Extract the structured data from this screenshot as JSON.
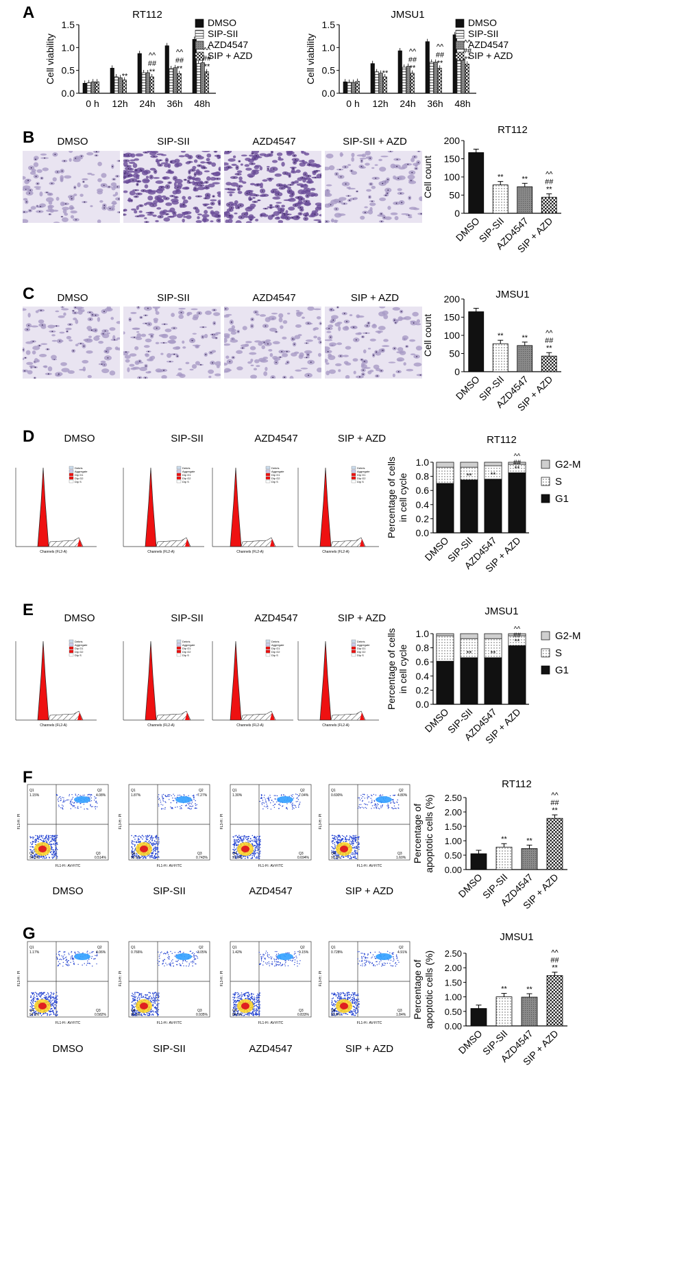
{
  "panels": {
    "A": {
      "letter": "A"
    },
    "B": {
      "letter": "B",
      "images": [
        "DMSO",
        "SIP-SII",
        "AZD4547",
        "SIP-SII + AZD"
      ]
    },
    "C": {
      "letter": "C",
      "images": [
        "DMSO",
        "SIP-SII",
        "AZD4547",
        "SIP + AZD"
      ]
    },
    "D": {
      "letter": "D",
      "images": [
        "DMSO",
        "SIP-SII",
        "AZD4547",
        "SIP + AZD"
      ],
      "hist_axis": "Channels (FL2-A)",
      "hist_legend": [
        "Debris",
        "Aggregate",
        "Dip G1",
        "Dip G2",
        "Dip S"
      ]
    },
    "E": {
      "letter": "E",
      "images": [
        "DMSO",
        "SIP-SII",
        "AZD4547",
        "SIP + AZD"
      ],
      "hist_axis": "Channels (FL2-A)",
      "hist_legend": [
        "Debris",
        "Aggregate",
        "Dip G1",
        "Dip G2",
        "Dip S"
      ]
    },
    "F": {
      "letter": "F",
      "images": [
        "DMSO",
        "SIP-SII",
        "AZD4547",
        "SIP + AZD"
      ],
      "flow_x": "FL1-H:: AV-FITC",
      "flow_y": "FL3-H:: PI",
      "quads": [
        [
          "1.15%",
          "4.08%",
          "94.3%",
          "0.514%"
        ],
        [
          "1.87%",
          "7.27%",
          "90.1%",
          "0.743%"
        ],
        [
          "1.30%",
          "7.04%",
          "91.0%",
          "0.694%"
        ],
        [
          "0.690%",
          "4.80%",
          "92.8%",
          "1.60%"
        ]
      ]
    },
    "G": {
      "letter": "G",
      "images": [
        "DMSO",
        "SIP-SII",
        "AZD4547",
        "SIP + AZD"
      ],
      "flow_x": "FL1-H:: AV-FITC",
      "flow_y": "FL3-H:: PI",
      "quads": [
        [
          "1.17%",
          "4.06%",
          "94.2%",
          "0.582%"
        ],
        [
          "0.766%",
          "3.05%",
          "95.3%",
          "0.935%"
        ],
        [
          "1.42%",
          "9.15%",
          "88.5%",
          "0.833%"
        ],
        [
          "0.728%",
          "4.91%",
          "92.6%",
          "1.84%"
        ]
      ]
    }
  },
  "chart_data": [
    {
      "id": "A1",
      "type": "bar",
      "title": "RT112",
      "ylabel": "Cell viability",
      "ylim": [
        0,
        1.5
      ],
      "yticks": [
        "0.0",
        "0.5",
        "1.0",
        "1.5"
      ],
      "categories": [
        "0 h",
        "12h",
        "24h",
        "36h",
        "48h"
      ],
      "series": [
        {
          "name": "DMSO",
          "values": [
            0.22,
            0.55,
            0.87,
            1.04,
            1.18
          ]
        },
        {
          "name": "SIP-SII",
          "values": [
            0.23,
            0.36,
            0.45,
            0.54,
            0.65
          ]
        },
        {
          "name": "AZD4547",
          "values": [
            0.25,
            0.34,
            0.45,
            0.56,
            0.67
          ]
        },
        {
          "name": "SIP + AZD",
          "values": [
            0.25,
            0.29,
            0.36,
            0.43,
            0.47
          ]
        }
      ],
      "annotations": [
        "**",
        "^^",
        "##",
        "**",
        "^^",
        "##",
        "**",
        "^^",
        "##",
        "**"
      ],
      "legend": [
        "DMSO",
        "SIP-SII",
        "AZD4547",
        "SIP + AZD"
      ]
    },
    {
      "id": "A2",
      "type": "bar",
      "title": "JMSU1",
      "ylabel": "Cell viability",
      "ylim": [
        0,
        1.5
      ],
      "yticks": [
        "0.0",
        "0.5",
        "1.0",
        "1.5"
      ],
      "categories": [
        "0 h",
        "12h",
        "24h",
        "36h",
        "48h"
      ],
      "series": [
        {
          "name": "DMSO",
          "values": [
            0.25,
            0.65,
            0.93,
            1.13,
            1.28
          ]
        },
        {
          "name": "SIP-SII",
          "values": [
            0.24,
            0.47,
            0.57,
            0.68,
            0.73
          ]
        },
        {
          "name": "AZD4547",
          "values": [
            0.24,
            0.44,
            0.59,
            0.68,
            0.75
          ]
        },
        {
          "name": "SIP + AZD",
          "values": [
            0.26,
            0.36,
            0.44,
            0.55,
            0.64
          ]
        }
      ],
      "annotations": [
        "**",
        "^^",
        "##",
        "**",
        "^^",
        "##",
        "**",
        "^^",
        "##",
        "**"
      ],
      "legend": [
        "DMSO",
        "SIP-SII",
        "AZD4547",
        "SIP + AZD"
      ]
    },
    {
      "id": "B",
      "type": "bar",
      "title": "RT112",
      "ylabel": "Cell count",
      "ylim": [
        0,
        200
      ],
      "yticks": [
        "0",
        "50",
        "100",
        "150",
        "200"
      ],
      "categories": [
        "DMSO",
        "SIP-SII",
        "AZD4547",
        "SIP + AZD"
      ],
      "values": [
        167,
        78,
        73,
        44
      ],
      "sig": [
        "",
        "**",
        "**",
        "^^|##|**"
      ]
    },
    {
      "id": "C",
      "type": "bar",
      "title": "JMSU1",
      "ylabel": "Cell count",
      "ylim": [
        0,
        200
      ],
      "yticks": [
        "0",
        "50",
        "100",
        "150",
        "200"
      ],
      "categories": [
        "DMSO",
        "SIP-SII",
        "AZD4547",
        "SIP + AZD"
      ],
      "values": [
        165,
        77,
        72,
        43
      ],
      "sig": [
        "",
        "**",
        "**",
        "^^|##|**"
      ]
    },
    {
      "id": "D",
      "type": "bar",
      "title": "RT112",
      "ylabel": "Percentage of cells in cell cycle",
      "ylim": [
        0,
        1.0
      ],
      "yticks": [
        "0.0",
        "0.2",
        "0.4",
        "0.6",
        "0.8",
        "1.0"
      ],
      "categories": [
        "DMSO",
        "SIP-SII",
        "AZD4547",
        "SIP + AZD"
      ],
      "series": [
        {
          "name": "G1",
          "values": [
            0.7,
            0.75,
            0.76,
            0.85
          ]
        },
        {
          "name": "S",
          "values": [
            0.23,
            0.18,
            0.19,
            0.12
          ]
        },
        {
          "name": "G2-M",
          "values": [
            0.07,
            0.07,
            0.05,
            0.03
          ]
        }
      ],
      "sig": [
        "",
        "**",
        "**",
        "^^|##|**"
      ],
      "legend": [
        "G2-M",
        "S",
        "G1"
      ]
    },
    {
      "id": "E",
      "type": "bar",
      "title": "JMSU1",
      "ylabel": "Percentage of cells in cell cycle",
      "ylim": [
        0,
        1.0
      ],
      "yticks": [
        "0.0",
        "0.2",
        "0.4",
        "0.6",
        "0.8",
        "1.0"
      ],
      "categories": [
        "DMSO",
        "SIP-SII",
        "AZD4547",
        "SIP + AZD"
      ],
      "series": [
        {
          "name": "G1",
          "values": [
            0.61,
            0.66,
            0.66,
            0.83
          ]
        },
        {
          "name": "S",
          "values": [
            0.36,
            0.27,
            0.27,
            0.14
          ]
        },
        {
          "name": "G2-M",
          "values": [
            0.03,
            0.07,
            0.07,
            0.03
          ]
        }
      ],
      "sig": [
        "",
        "**",
        "**",
        "^^|##|**"
      ],
      "legend": [
        "G2-M",
        "S",
        "G1"
      ]
    },
    {
      "id": "F",
      "type": "bar",
      "title": "RT112",
      "ylabel": "Percentage of apoptotic cells (%)",
      "ylim": [
        0,
        2.5
      ],
      "yticks": [
        "0.00",
        "0.50",
        "1.00",
        "1.50",
        "2.00",
        "2.50"
      ],
      "categories": [
        "DMSO",
        "SIP-SII",
        "AZD4547",
        "SIP + AZD"
      ],
      "values": [
        0.55,
        0.78,
        0.73,
        1.78
      ],
      "sig": [
        "",
        "**",
        "**",
        "^^|##|**"
      ]
    },
    {
      "id": "G",
      "type": "bar",
      "title": "JMSU1",
      "ylabel": "Percentage of apoptotic cells (%)",
      "ylim": [
        0,
        2.5
      ],
      "yticks": [
        "0.00",
        "0.50",
        "1.00",
        "1.50",
        "2.00",
        "2.50"
      ],
      "categories": [
        "DMSO",
        "SIP-SII",
        "AZD4547",
        "SIP + AZD"
      ],
      "values": [
        0.6,
        1.0,
        0.99,
        1.73
      ],
      "sig": [
        "",
        "**",
        "**",
        "^^|##|**"
      ]
    }
  ]
}
